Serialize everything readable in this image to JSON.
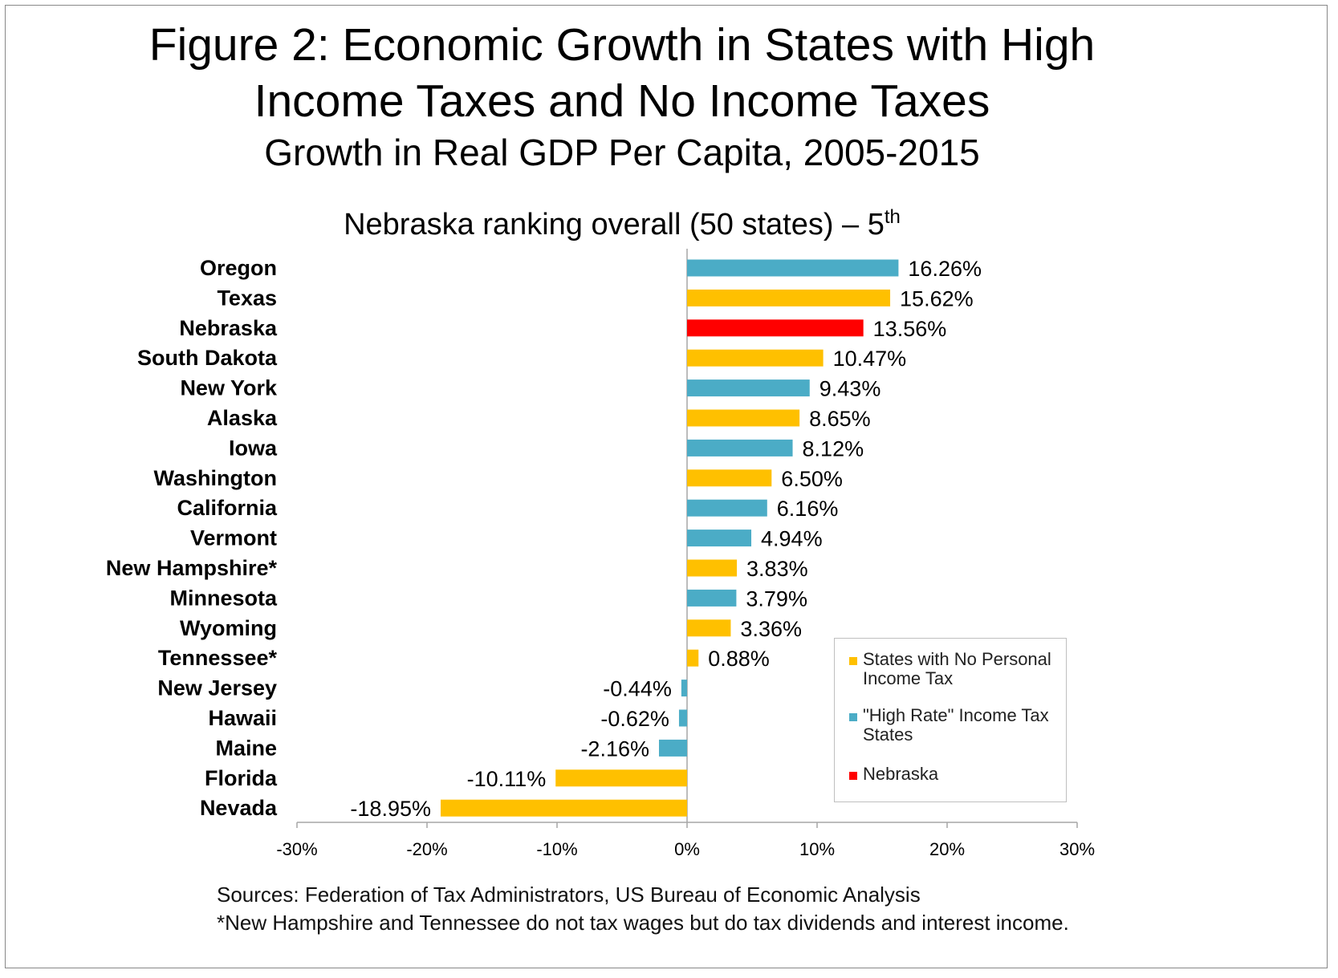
{
  "title_line1": "Figure 2: Economic Growth in States with High",
  "title_line2": "Income Taxes and No Income Taxes",
  "subtitle": "Growth in Real GDP Per Capita, 2005-2015",
  "ranking_text": "Nebraska ranking overall (50 states) – 5",
  "ranking_sup": "th",
  "colors": {
    "no_income_tax": "#FFC000",
    "high_rate": "#4BACC6",
    "nebraska": "#FF0000"
  },
  "legend": {
    "no_income_tax": "States with No Personal Income Tax",
    "high_rate": "\"High Rate\" Income Tax States",
    "nebraska": "Nebraska"
  },
  "sources_line1": "Sources: Federation of Tax Administrators, US Bureau of Economic Analysis",
  "sources_line2": "*New Hampshire and Tennessee do not tax wages but do tax  dividends and interest income.",
  "chart_data": {
    "type": "bar",
    "orientation": "horizontal",
    "title": "Growth in Real GDP Per Capita, 2005-2015",
    "xlim": [
      -30,
      30
    ],
    "x_ticks": [
      -30,
      -20,
      -10,
      0,
      10,
      20,
      30
    ],
    "x_tick_labels": [
      "-30%",
      "-20%",
      "-10%",
      "0%",
      "10%",
      "20%",
      "30%"
    ],
    "grid": false,
    "legend_position": "bottom-right",
    "categories": [
      "Oregon",
      "Texas",
      "Nebraska",
      "South Dakota",
      "New York",
      "Alaska",
      "Iowa",
      "Washington",
      "California",
      "Vermont",
      "New Hampshire*",
      "Minnesota",
      "Wyoming",
      "Tennessee*",
      "New Jersey",
      "Hawaii",
      "Maine",
      "Florida",
      "Nevada"
    ],
    "values": [
      16.26,
      15.62,
      13.56,
      10.47,
      9.43,
      8.65,
      8.12,
      6.5,
      6.16,
      4.94,
      3.83,
      3.79,
      3.36,
      0.88,
      -0.44,
      -0.62,
      -2.16,
      -10.11,
      -18.95
    ],
    "value_labels": [
      "16.26%",
      "15.62%",
      "13.56%",
      "10.47%",
      "9.43%",
      "8.65%",
      "8.12%",
      "6.50%",
      "6.16%",
      "4.94%",
      "3.83%",
      "3.79%",
      "3.36%",
      "0.88%",
      "-0.44%",
      "-0.62%",
      "-2.16%",
      "-10.11%",
      "-18.95%"
    ],
    "groups": [
      "high_rate",
      "no_income_tax",
      "nebraska",
      "no_income_tax",
      "high_rate",
      "no_income_tax",
      "high_rate",
      "no_income_tax",
      "high_rate",
      "high_rate",
      "no_income_tax",
      "high_rate",
      "no_income_tax",
      "no_income_tax",
      "high_rate",
      "high_rate",
      "high_rate",
      "no_income_tax",
      "no_income_tax"
    ]
  }
}
